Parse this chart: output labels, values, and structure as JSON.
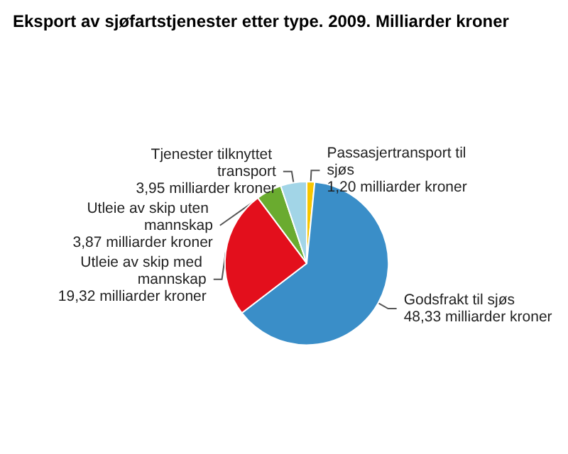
{
  "chart_data": {
    "type": "pie",
    "title": "Eksport av sjøfartstjenester etter type. 2009. Milliarder kroner",
    "categories": [
      "Passasjertransport til sjøs",
      "Godsfrakt til sjøs",
      "Utleie av skip med mannskap",
      "Utleie av skip uten mannskap",
      "Tjenester tilknyttet transport"
    ],
    "values": [
      1.2,
      48.33,
      19.32,
      3.87,
      3.95
    ],
    "value_labels": [
      "1,20 milliarder kroner",
      "48,33 milliarder kroner",
      "19,32 milliarder kroner",
      "3,87 milliarder kroner",
      "3,95 milliarder kroner"
    ],
    "colors": [
      "#f7c600",
      "#3a8ec8",
      "#e30f1c",
      "#6aab2f",
      "#a2d5e7"
    ],
    "legend": false
  }
}
